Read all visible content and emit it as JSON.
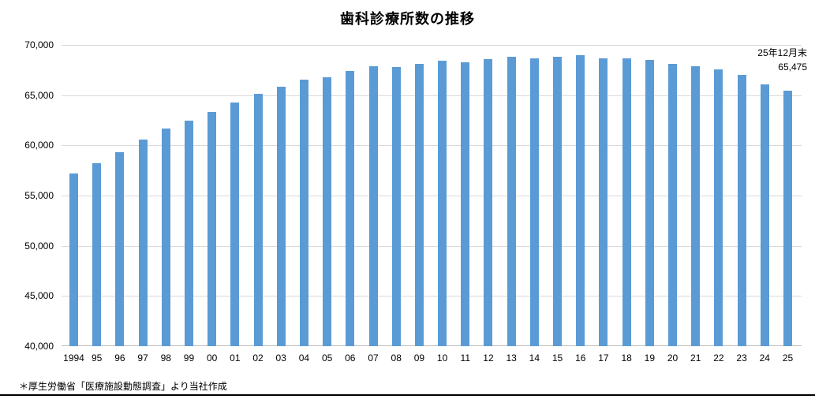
{
  "title": "歯科診療所数の推移",
  "annotation": {
    "line1": "25年12月末",
    "line2": "65,475"
  },
  "footnote": "＊厚生労働省「医療施設動態調査」より当社作成",
  "colors": {
    "bar": "#5B9BD5",
    "gridline": "#D9D9D9",
    "axis_line": "#BFBFBF",
    "text": "#000000",
    "bottom_rule": "#000000"
  },
  "chart_data": {
    "type": "bar",
    "title": "歯科診療所数の推移",
    "xlabel": "",
    "ylabel": "",
    "categories": [
      "1994",
      "95",
      "96",
      "97",
      "98",
      "99",
      "00",
      "01",
      "02",
      "03",
      "04",
      "05",
      "06",
      "07",
      "08",
      "09",
      "10",
      "11",
      "12",
      "13",
      "14",
      "15",
      "16",
      "17",
      "18",
      "19",
      "20",
      "21",
      "22",
      "23",
      "24",
      "25"
    ],
    "values": [
      57200,
      58250,
      59300,
      60550,
      61650,
      62500,
      63350,
      64250,
      65100,
      65850,
      66550,
      66750,
      67400,
      67850,
      67800,
      68150,
      68450,
      68250,
      68550,
      68800,
      68650,
      68800,
      68950,
      68650,
      68700,
      68500,
      68100,
      67900,
      67600,
      67000,
      66100,
      65475
    ],
    "ylim": [
      40000,
      70000
    ],
    "ytick_interval": 5000,
    "ytick_labels": [
      "40,000",
      "45,000",
      "50,000",
      "55,000",
      "60,000",
      "65,000",
      "70,000"
    ],
    "grid": true,
    "legend": "none",
    "last_point_label": "65,475",
    "last_point_date": "25年12月末"
  }
}
